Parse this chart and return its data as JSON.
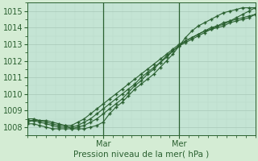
{
  "title": "",
  "xlabel": "Pression niveau de la mer( hPa )",
  "ylabel": "",
  "bg_color": "#d4ecd4",
  "plot_bg_color": "#c4e4d4",
  "grid_major_color": "#a8c8b8",
  "grid_minor_color": "#b8d8c8",
  "line_color": "#2a6030",
  "text_color": "#2a6030",
  "ylim": [
    1007.5,
    1015.5
  ],
  "xlim": [
    0,
    72
  ],
  "yticks": [
    1008,
    1009,
    1010,
    1011,
    1012,
    1013,
    1014,
    1015
  ],
  "xtick_positions": [
    24,
    48
  ],
  "xtick_labels": [
    "Mar",
    "Mer"
  ],
  "vlines": [
    24,
    48
  ],
  "series": [
    [
      1008.3,
      1008.4,
      1008.4,
      1008.4,
      1008.3,
      1008.2,
      1008.1,
      1007.9,
      1007.9,
      1007.9,
      1008.0,
      1008.1,
      1008.3,
      1008.8,
      1009.2,
      1009.5,
      1009.9,
      1010.3,
      1010.6,
      1010.9,
      1011.2,
      1011.6,
      1012.0,
      1012.4,
      1012.9,
      1013.4,
      1013.8,
      1014.1,
      1014.3,
      1014.5,
      1014.7,
      1014.9,
      1015.0,
      1015.1,
      1015.2,
      1015.2,
      1015.2
    ],
    [
      1008.2,
      1008.2,
      1008.1,
      1008.0,
      1007.9,
      1007.9,
      1007.9,
      1007.9,
      1008.0,
      1008.1,
      1008.3,
      1008.5,
      1008.8,
      1009.1,
      1009.4,
      1009.7,
      1010.1,
      1010.5,
      1010.8,
      1011.2,
      1011.5,
      1011.9,
      1012.2,
      1012.6,
      1012.9,
      1013.2,
      1013.4,
      1013.6,
      1013.8,
      1014.0,
      1014.1,
      1014.3,
      1014.4,
      1014.5,
      1014.6,
      1014.7,
      1014.8
    ],
    [
      1008.4,
      1008.4,
      1008.3,
      1008.2,
      1008.1,
      1008.0,
      1008.0,
      1008.0,
      1008.1,
      1008.3,
      1008.5,
      1008.8,
      1009.1,
      1009.4,
      1009.7,
      1010.0,
      1010.3,
      1010.6,
      1011.0,
      1011.3,
      1011.6,
      1011.9,
      1012.3,
      1012.6,
      1012.9,
      1013.1,
      1013.3,
      1013.5,
      1013.7,
      1013.9,
      1014.0,
      1014.1,
      1014.3,
      1014.4,
      1014.5,
      1014.6,
      1014.8
    ],
    [
      1008.5,
      1008.5,
      1008.4,
      1008.3,
      1008.2,
      1008.1,
      1008.1,
      1008.1,
      1008.3,
      1008.5,
      1008.8,
      1009.1,
      1009.4,
      1009.7,
      1010.0,
      1010.3,
      1010.6,
      1010.9,
      1011.2,
      1011.5,
      1011.8,
      1012.1,
      1012.4,
      1012.7,
      1013.0,
      1013.2,
      1013.4,
      1013.6,
      1013.8,
      1013.9,
      1014.1,
      1014.2,
      1014.4,
      1014.6,
      1014.8,
      1015.0,
      1015.2
    ]
  ]
}
